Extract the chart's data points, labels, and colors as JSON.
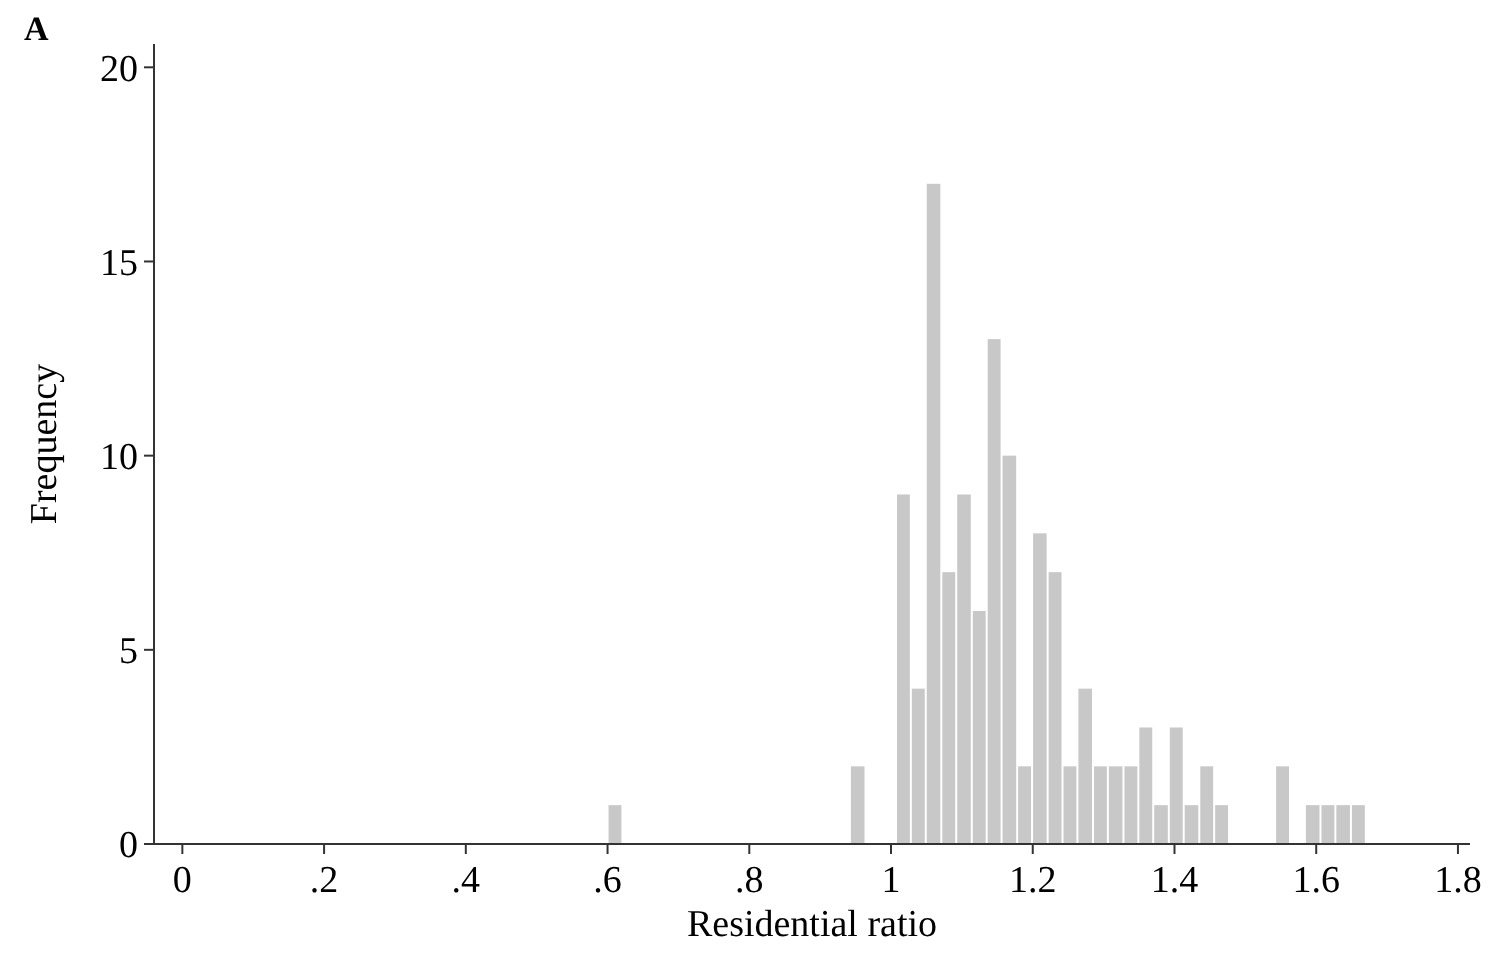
{
  "chart_data": {
    "type": "histogram",
    "xlabel": "Residential ratio",
    "ylabel": "Frequency",
    "annotations": [
      "A"
    ],
    "bins": [
      0.6,
      0.621,
      0.942,
      0.964,
      1.007,
      1.028,
      1.049,
      1.071,
      1.092,
      1.114,
      1.135,
      1.156,
      1.178,
      1.199,
      1.221,
      1.242,
      1.263,
      1.285,
      1.306,
      1.328,
      1.349,
      1.37,
      1.392,
      1.413,
      1.435,
      1.456,
      1.477,
      1.542,
      1.563,
      1.584,
      1.606,
      1.627,
      1.649,
      1.67
    ],
    "values": [
      1,
      0,
      2,
      0,
      9,
      4,
      17,
      7,
      9,
      6,
      13,
      10,
      2,
      8,
      7,
      2,
      4,
      2,
      2,
      2,
      3,
      1,
      3,
      1,
      2,
      1,
      0,
      2,
      0,
      1,
      1,
      1,
      1
    ],
    "color": "#c8c8c8",
    "xlim": [
      -0.04,
      1.817
    ],
    "xticks": [
      0,
      {
        "value": 0.2,
        "label": ".2"
      },
      {
        "value": 0.4,
        "label": ".4"
      },
      {
        "value": 0.6,
        "label": ".6"
      },
      {
        "value": 0.8,
        "label": ".8"
      },
      1,
      1.2,
      1.4,
      1.6,
      1.8
    ],
    "ylim": [
      0,
      20.6
    ],
    "yticks": [
      0,
      5,
      10,
      15,
      20
    ],
    "grid": false
  }
}
